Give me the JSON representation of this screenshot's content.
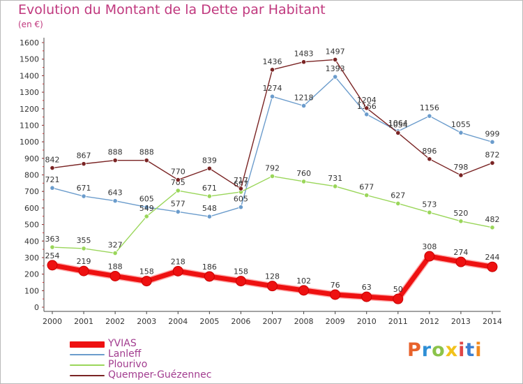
{
  "title": "Evolution du Montant de la Dette par Habitant",
  "unit_label": "(en €)",
  "logo_text": "Proxiti",
  "logo_colors": [
    "#e8622b",
    "#2f8fd6",
    "#8bc34a",
    "#f2c21b",
    "#e04646",
    "#3c7fd1",
    "#f28a1e"
  ],
  "chart_data": {
    "type": "line",
    "title": "Evolution du Montant de la Dette par Habitant",
    "ylabel": "(en €)",
    "xlabel": "",
    "x": [
      2000,
      2001,
      2002,
      2003,
      2004,
      2005,
      2006,
      2007,
      2008,
      2009,
      2010,
      2011,
      2012,
      2013,
      2014
    ],
    "ylim": [
      0,
      1600
    ],
    "yticks": [
      0,
      100,
      200,
      300,
      400,
      500,
      600,
      700,
      800,
      900,
      1000,
      1100,
      1200,
      1300,
      1400,
      1500,
      1600
    ],
    "grid": false,
    "legend_position": "bottom-left",
    "series": [
      {
        "name": "YVIAS",
        "color": "#ee1111",
        "values": [
          254,
          219,
          188,
          158,
          218,
          186,
          158,
          128,
          102,
          76,
          63,
          50,
          308,
          274,
          244
        ]
      },
      {
        "name": "Lanleff",
        "color": "#6b9ccc",
        "values": [
          721,
          671,
          643,
          605,
          577,
          548,
          605,
          1274,
          1218,
          1393,
          1166,
          1064,
          1156,
          1055,
          999
        ]
      },
      {
        "name": "Plourivo",
        "color": "#9ad65a",
        "values": [
          363,
          355,
          327,
          549,
          705,
          671,
          697,
          792,
          760,
          731,
          677,
          627,
          573,
          520,
          482
        ]
      },
      {
        "name": "Quemper-Guézennec",
        "color": "#7a2424",
        "values": [
          842,
          867,
          888,
          888,
          770,
          839,
          717,
          1436,
          1483,
          1497,
          1204,
          1054,
          896,
          798,
          872
        ]
      }
    ]
  }
}
